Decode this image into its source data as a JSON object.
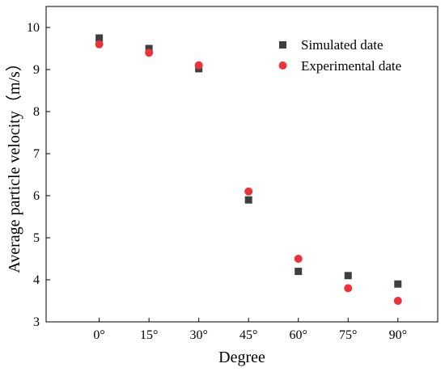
{
  "chart_data": {
    "type": "scatter",
    "title": "",
    "xlabel": "Degree",
    "ylabel": "Average particle velocity（m/s）",
    "categories": [
      "0°",
      "15°",
      "30°",
      "45°",
      "60°",
      "75°",
      "90°"
    ],
    "x_values": [
      0,
      15,
      30,
      45,
      60,
      75,
      90
    ],
    "xlim": [
      -16,
      102
    ],
    "ylim": [
      3,
      10.5
    ],
    "yticks": [
      3,
      4,
      5,
      6,
      7,
      8,
      9,
      10
    ],
    "grid": false,
    "legend_position": "top-right",
    "series": [
      {
        "name": "Simulated date",
        "marker": "square",
        "color": "#3f3f3f",
        "values": [
          9.75,
          9.5,
          9.02,
          5.9,
          4.2,
          4.1,
          3.9
        ]
      },
      {
        "name": "Experimental date",
        "marker": "circle",
        "color": "#e8343a",
        "values": [
          9.6,
          9.4,
          9.1,
          6.1,
          4.5,
          3.8,
          3.5
        ]
      }
    ]
  }
}
